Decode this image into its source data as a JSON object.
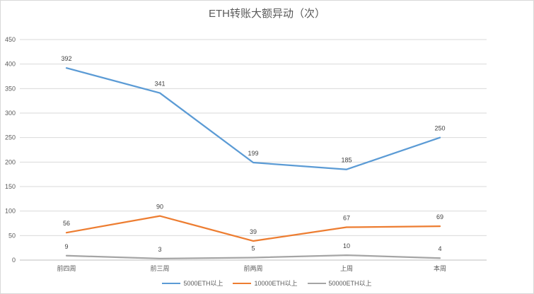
{
  "chart_data": {
    "type": "line",
    "title": "ETH转账大额异动（次）",
    "categories": [
      "前四周",
      "前三周",
      "前两周",
      "上周",
      "本周"
    ],
    "series": [
      {
        "name": "5000ETH以上",
        "color": "#5b9bd5",
        "values": [
          392,
          341,
          199,
          185,
          250
        ]
      },
      {
        "name": "10000ETH以上",
        "color": "#ed7d31",
        "values": [
          56,
          90,
          39,
          67,
          69
        ]
      },
      {
        "name": "50000ETH以上",
        "color": "#a5a5a5",
        "values": [
          9,
          3,
          5,
          10,
          4
        ]
      }
    ],
    "ylim": [
      0,
      450
    ],
    "yticks": [
      0,
      50,
      100,
      150,
      200,
      250,
      300,
      350,
      400,
      450
    ],
    "grid": true,
    "legend_position": "bottom"
  }
}
